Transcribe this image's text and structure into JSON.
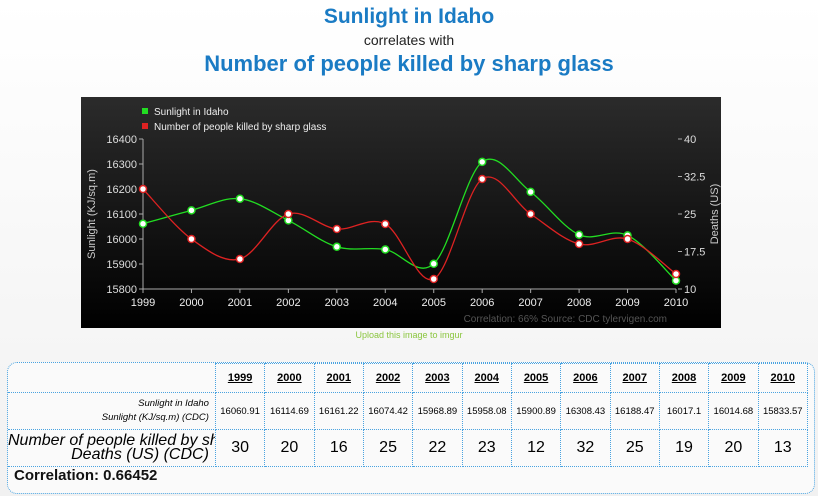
{
  "header": {
    "title1": "Sunlight in Idaho",
    "connector": "correlates with",
    "title2": "Number of people killed by sharp glass"
  },
  "upload_link": "Upload this image to imgur",
  "chart_data": {
    "type": "line",
    "x": [
      1999,
      2000,
      2001,
      2002,
      2003,
      2004,
      2005,
      2006,
      2007,
      2008,
      2009,
      2010
    ],
    "series": [
      {
        "name": "Sunlight in Idaho",
        "axis": "left",
        "color": "#22dd22",
        "values": [
          16060.91,
          16114.69,
          16161.22,
          16074.42,
          15968.89,
          15958.08,
          15900.89,
          16308.43,
          16188.47,
          16017.1,
          16014.68,
          15833.57
        ]
      },
      {
        "name": "Number of people killed by sharp glass",
        "axis": "right",
        "color": "#dd2222",
        "values": [
          30,
          20,
          16,
          25,
          22,
          23,
          12,
          32,
          25,
          19,
          20,
          13
        ]
      }
    ],
    "ylabel": "Sunlight (KJ/sq.m)",
    "y2label": "Deaths (US)",
    "ylim": [
      15800,
      16400
    ],
    "yticks": [
      "15800",
      "15900",
      "16000",
      "16100",
      "16200",
      "16300",
      "16400"
    ],
    "y2lim": [
      10,
      40
    ],
    "y2ticks": [
      "10",
      "17.5",
      "25",
      "32.5",
      "40"
    ],
    "xticks": [
      "1999",
      "2000",
      "2001",
      "2002",
      "2003",
      "2004",
      "2005",
      "2006",
      "2007",
      "2008",
      "2009",
      "2010"
    ],
    "legend_position": "top-left",
    "footer": "Correlation: 66%    Source: CDC   tylervigen.com"
  },
  "table": {
    "years": [
      "1999",
      "2000",
      "2001",
      "2002",
      "2003",
      "2004",
      "2005",
      "2006",
      "2007",
      "2008",
      "2009",
      "2010"
    ],
    "row1_label": "Sunlight in Idaho",
    "row1_unit": "Sunlight (KJ/sq.m) (CDC)",
    "row1": [
      "16060.91",
      "16114.69",
      "16161.22",
      "16074.42",
      "15968.89",
      "15958.08",
      "15900.89",
      "16308.43",
      "16188.47",
      "16017.1",
      "16014.68",
      "15833.57"
    ],
    "row2_label": "Number of people killed by sharp glass",
    "row2_unit": "Deaths (US) (CDC)",
    "row2": [
      "30",
      "20",
      "16",
      "25",
      "22",
      "23",
      "12",
      "32",
      "25",
      "19",
      "20",
      "13"
    ],
    "correlation": "Correlation: 0.66452"
  }
}
